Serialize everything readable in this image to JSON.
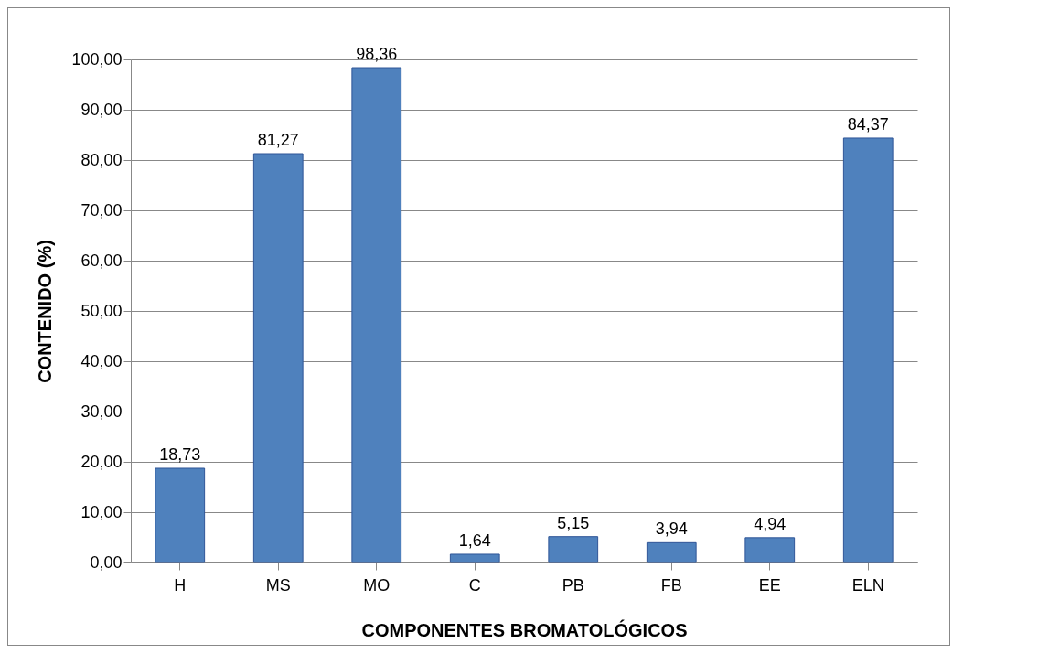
{
  "chart_data": {
    "type": "bar",
    "xlabel": "COMPONENTES BROMATOLÓGICOS",
    "ylabel": "CONTENIDO (%)",
    "categories": [
      "H",
      "MS",
      "MO",
      "C",
      "PB",
      "FB",
      "EE",
      "ELN"
    ],
    "values": [
      18.73,
      81.27,
      98.36,
      1.64,
      5.15,
      3.94,
      4.94,
      84.37
    ],
    "value_labels": [
      "18,73",
      "81,27",
      "98,36",
      "1,64",
      "5,15",
      "3,94",
      "4,94",
      "84,37"
    ],
    "color": "#4f81bd",
    "ylim": [
      0,
      100
    ],
    "yticks": [
      {
        "value": 0,
        "label": "0,00"
      },
      {
        "value": 10,
        "label": "10,00"
      },
      {
        "value": 20,
        "label": "20,00"
      },
      {
        "value": 30,
        "label": "30,00"
      },
      {
        "value": 40,
        "label": "40,00"
      },
      {
        "value": 50,
        "label": "50,00"
      },
      {
        "value": 60,
        "label": "60,00"
      },
      {
        "value": 70,
        "label": "70,00"
      },
      {
        "value": 80,
        "label": "80,00"
      },
      {
        "value": 90,
        "label": "90,00"
      },
      {
        "value": 100,
        "label": "100,00"
      }
    ],
    "grid": "y"
  }
}
